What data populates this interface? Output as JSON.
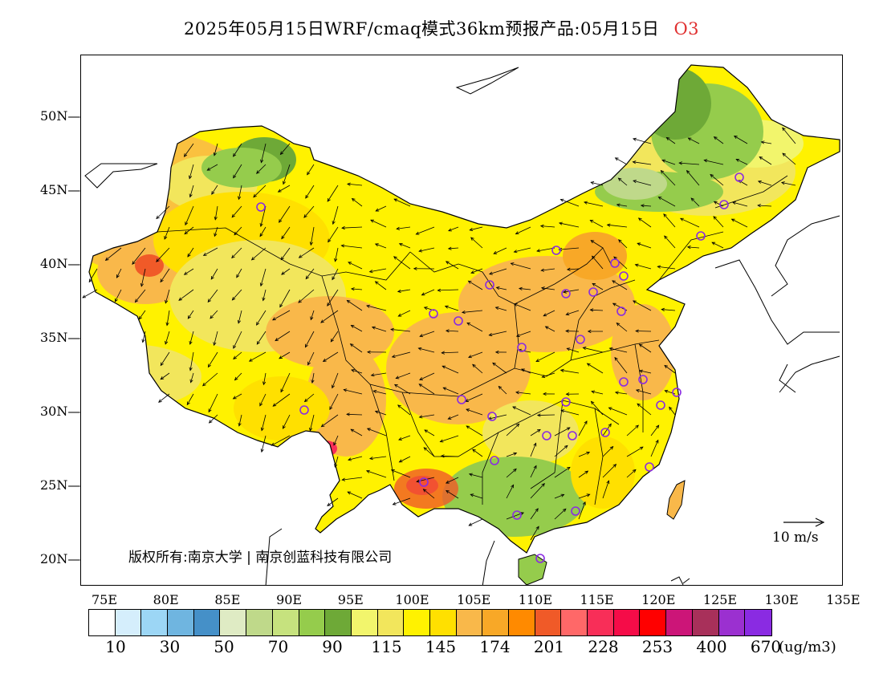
{
  "header": {
    "title": "2025年05月15日WRF/cmaq模式36km预报产品:05月15日",
    "variable": "O3"
  },
  "axes": {
    "lat_labels": [
      "50N",
      "45N",
      "40N",
      "35N",
      "30N",
      "25N",
      "20N"
    ],
    "lon_labels": [
      "75E",
      "80E",
      "85E",
      "90E",
      "95E",
      "100E",
      "105E",
      "110E",
      "115E",
      "120E",
      "125E",
      "130E",
      "135E"
    ]
  },
  "footer": {
    "copyright": "版权所有:南京大学 | 南京创蓝科技有限公司",
    "wind_scale": "10 m/s"
  },
  "colorbar": {
    "unit": "(ug/m3)",
    "tick_labels": [
      "10",
      "30",
      "50",
      "70",
      "90",
      "115",
      "145",
      "174",
      "201",
      "228",
      "253",
      "400",
      "670"
    ],
    "colors": [
      "#ffffff",
      "#d5eefc",
      "#9cd6f5",
      "#6fb5e0",
      "#4590c8",
      "#dfebc4",
      "#bfd98a",
      "#c6e27e",
      "#95cc4c",
      "#6ea937",
      "#f2f56c",
      "#f2e65c",
      "#fff200",
      "#ffe000",
      "#f9b84a",
      "#f8a827",
      "#ff8a00",
      "#f05a28",
      "#ff6868",
      "#f82e58",
      "#f50c48",
      "#ff0000",
      "#cc1578",
      "#a8305a",
      "#9b30d0",
      "#8a2be2"
    ]
  }
}
